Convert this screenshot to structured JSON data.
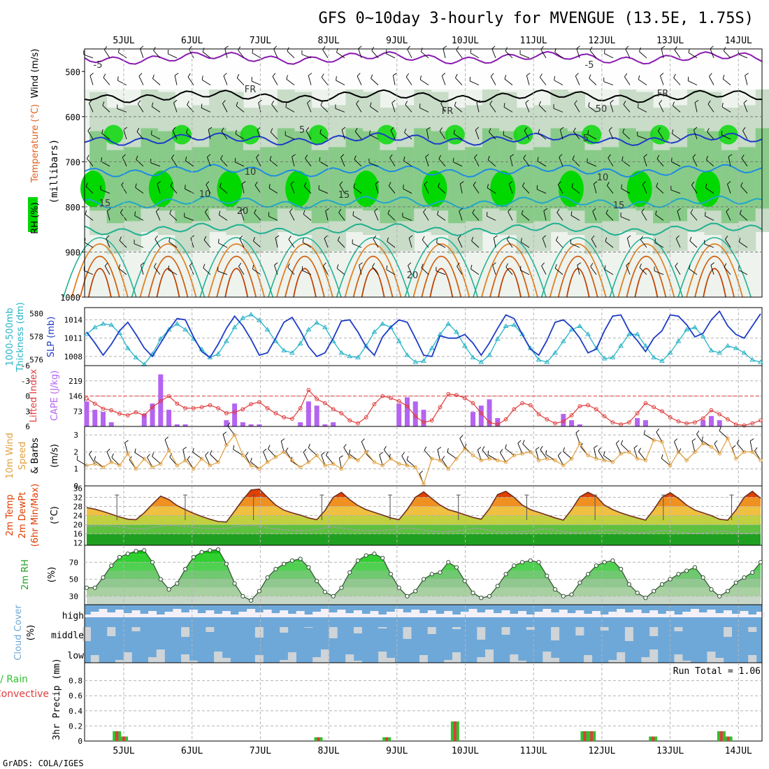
{
  "title": "GFS 0~10day 3-hourly for MVENGUE (13.5E, 1.75S)",
  "footer": "GrADS: COLA/IGES",
  "dates": [
    "5JUL",
    "6JUL",
    "7JUL",
    "8JUL",
    "9JUL",
    "10JUL",
    "11JUL",
    "12JUL",
    "13JUL",
    "14JUL"
  ],
  "colors": {
    "grid": "#b4b4b4",
    "rh_dark": "#00d800",
    "rh_mid": "#7cc87c",
    "rh_light": "#c8dcc8",
    "temp_warm": "#e07000",
    "temp_mid": "#20b090",
    "slp": "#1e3cc8",
    "thickness": "#28b4c8",
    "cape": "#b464f0",
    "lifted": "#e03c3c",
    "wind10": "#e0a040",
    "temp2m": "#e03c00",
    "dewpt": "#a0a0a0",
    "rh2m": "#30d030",
    "cloud": "#6ea8d8",
    "precip_total": "#30c030",
    "precip_conv": "#e03c3c"
  },
  "panels": {
    "upper": {
      "ylabel": "(millibars)",
      "yticks": [
        "500",
        "600",
        "700",
        "800",
        "900",
        "1000"
      ],
      "side_labels": [
        "RH (%)",
        "Temperature (°C)",
        "Wind (m/s)"
      ],
      "contour_labels": [
        "-5",
        "-5",
        "FR",
        "FR",
        "FR",
        "5",
        "5",
        "10",
        "10",
        "15",
        "15",
        "15",
        "20",
        "20",
        "10",
        "50"
      ]
    },
    "slp": {
      "left_labels": [
        "1000-500mb",
        "Thickness (dm)"
      ],
      "right_label": "SLP (mb)",
      "left_ticks": [
        "580",
        "578",
        "576"
      ],
      "right_ticks": [
        "1014",
        "1011",
        "1008"
      ]
    },
    "cape": {
      "left_label": "Lifted Index",
      "right_label": "CAPE (J/kg)",
      "left_ticks": [
        "-6",
        "-3",
        "0",
        "3",
        "6"
      ],
      "right_ticks": [
        "219",
        "146",
        "73"
      ]
    },
    "wind10": {
      "labels": [
        "10m Wind",
        "Speed",
        "& Barbs"
      ],
      "unit": "(m/s)",
      "yticks": [
        "3",
        "2",
        "1",
        "0"
      ]
    },
    "temp2m": {
      "labels": [
        "2m Temp",
        "2m DewPt",
        "(6hr Min/Max)"
      ],
      "unit": "(°C)",
      "yticks": [
        "36",
        "32",
        "28",
        "24",
        "20",
        "16",
        "12"
      ]
    },
    "rh2m": {
      "label": "2m RH",
      "unit": "(%)",
      "yticks": [
        "70",
        "50",
        "30"
      ]
    },
    "cloud": {
      "label": "Cloud Cover",
      "unit": "(%)",
      "levels": [
        "high",
        "middle",
        "low"
      ]
    },
    "precip": {
      "left_labels": [
        "Total / Rain",
        "Convective"
      ],
      "ylabel": "3hr Precip (mm)",
      "yticks": [
        "0.8",
        "0.6",
        "0.4",
        "0.2",
        "0"
      ],
      "run_total": "Run Total = 1.06"
    }
  },
  "chart_data": [
    {
      "type": "line",
      "title": "1000-500mb Thickness (dm) / SLP (mb)",
      "series": [
        {
          "name": "SLP (mb)",
          "values": [
            1012.0,
            1010.2,
            1008.2,
            1010.0,
            1012.2,
            1013.6,
            1011.6,
            1009.4,
            1008.0,
            1010.2,
            1012.4,
            1014.2,
            1014.0,
            1011.2,
            1008.8,
            1007.8,
            1010.0,
            1012.6,
            1014.6,
            1013.0,
            1010.8,
            1008.2,
            1008.6,
            1011.0,
            1013.6,
            1014.4,
            1012.2,
            1009.6,
            1008.0,
            1008.6,
            1011.0,
            1013.8,
            1014.0,
            1012.0,
            1009.6,
            1008.2,
            1011.2,
            1012.8,
            1014.0,
            1013.6,
            1011.0,
            1008.2,
            1008.0,
            1011.4,
            1011.0,
            1011.0,
            1011.6,
            1010.2,
            1008.2,
            1010.2,
            1012.6,
            1014.8,
            1014.2,
            1011.6,
            1009.2,
            1008.2,
            1010.6,
            1013.6,
            1014.0,
            1012.8,
            1011.0,
            1008.6,
            1009.2,
            1012.2,
            1014.6,
            1014.8,
            1012.2,
            1010.6,
            1008.8,
            1011.0,
            1012.2,
            1014.8,
            1014.6,
            1013.2,
            1011.2,
            1011.8,
            1014.0,
            1015.4,
            1013.0,
            1011.6,
            1011.0,
            1013.0,
            1015.0
          ]
        },
        {
          "name": "1000-500mb Thickness (dm)",
          "values": [
            578.2,
            578.8,
            579.1,
            579.0,
            578.3,
            577.0,
            576.2,
            575.6,
            576.5,
            577.8,
            578.6,
            579.1,
            578.6,
            577.8,
            576.9,
            576.2,
            576.5,
            577.6,
            578.8,
            579.6,
            579.9,
            579.4,
            578.6,
            577.6,
            576.8,
            576.6,
            577.4,
            578.6,
            579.2,
            578.8,
            577.6,
            576.6,
            576.3,
            576.2,
            577.2,
            578.4,
            579.1,
            578.8,
            577.6,
            576.4,
            575.8,
            575.9,
            577.0,
            578.2,
            579.1,
            578.4,
            577.2,
            576.2,
            575.8,
            576.4,
            577.8,
            578.9,
            579.0,
            578.2,
            577.0,
            576.0,
            575.8,
            576.6,
            577.6,
            578.6,
            578.9,
            578.2,
            577.0,
            576.1,
            576.2,
            577.2,
            578.2,
            578.2,
            577.2,
            576.2,
            575.9,
            576.6,
            577.6,
            578.6,
            578.8,
            578.0,
            576.8,
            576.6,
            577.2,
            577.0,
            576.6,
            576.0,
            575.8
          ]
        }
      ],
      "ylim_left": [
        575.5,
        580.5
      ],
      "ylim_right": [
        1006.5,
        1016.0
      ]
    },
    {
      "type": "bar",
      "title": "Lifted Index / CAPE (J/kg)",
      "series": [
        {
          "name": "CAPE (J/kg)",
          "values": [
            120,
            80,
            70,
            20,
            0,
            0,
            0,
            60,
            110,
            250,
            80,
            10,
            10,
            0,
            0,
            0,
            0,
            30,
            110,
            20,
            10,
            10,
            0,
            0,
            0,
            0,
            20,
            120,
            100,
            10,
            20,
            0,
            0,
            0,
            0,
            0,
            0,
            0,
            110,
            140,
            120,
            80,
            0,
            0,
            0,
            0,
            0,
            70,
            100,
            130,
            40,
            0,
            0,
            0,
            0,
            0,
            0,
            0,
            60,
            30,
            10,
            0,
            0,
            0,
            0,
            0,
            0,
            40,
            30,
            0,
            0,
            0,
            0,
            0,
            0,
            30,
            50,
            30,
            0,
            0,
            0,
            0,
            0
          ]
        },
        {
          "name": "Lifted Index",
          "values": [
            0.5,
            1.5,
            2.5,
            2.8,
            3.5,
            3.8,
            3.2,
            3.8,
            2.2,
            1.0,
            0.0,
            1.5,
            2.4,
            2.4,
            2.2,
            1.8,
            2.4,
            3.4,
            3.2,
            2.6,
            1.6,
            1.2,
            2.4,
            3.4,
            4.2,
            4.5,
            2.4,
            -1.2,
            0.6,
            1.4,
            2.6,
            3.4,
            4.8,
            5.4,
            4.2,
            1.6,
            0.0,
            0.4,
            1.0,
            2.0,
            4.0,
            5.2,
            4.8,
            2.2,
            -0.4,
            -0.2,
            0.4,
            1.4,
            3.4,
            5.2,
            5.6,
            4.6,
            2.6,
            1.4,
            1.8,
            3.6,
            4.6,
            5.4,
            5.0,
            3.8,
            2.0,
            1.8,
            2.6,
            4.0,
            5.2,
            5.6,
            5.2,
            3.4,
            1.4,
            2.2,
            3.0,
            4.2,
            5.0,
            5.4,
            5.2,
            4.4,
            2.8,
            3.6,
            4.6,
            5.6,
            5.8,
            5.4,
            4.8
          ]
        }
      ],
      "ylim_left": [
        6,
        -6
      ],
      "ylim_right": [
        0,
        292
      ]
    },
    {
      "type": "line",
      "title": "10m Wind Speed & Barbs (m/s)",
      "series": [
        {
          "name": "10m Wind Speed",
          "values": [
            1.2,
            1.3,
            1.1,
            1.4,
            1.2,
            1.9,
            1.0,
            1.6,
            1.1,
            1.3,
            2.1,
            1.2,
            1.5,
            1.0,
            1.6,
            1.2,
            1.4,
            2.4,
            3.0,
            1.8,
            1.2,
            1.0,
            1.4,
            1.7,
            2.0,
            1.5,
            1.1,
            1.4,
            1.8,
            1.2,
            1.3,
            1.0,
            1.7,
            1.5,
            2.0,
            1.4,
            1.2,
            1.6,
            1.3,
            1.2,
            1.1,
            0.1,
            1.6,
            1.5,
            1.0,
            1.6,
            2.2,
            1.8,
            1.5,
            1.6,
            1.5,
            1.4,
            1.8,
            1.9,
            2.0,
            1.5,
            1.6,
            1.5,
            1.2,
            1.6,
            2.5,
            1.8,
            1.6,
            1.5,
            1.4,
            1.9,
            2.0,
            1.6,
            1.5,
            2.7,
            2.6,
            1.2,
            2.0,
            1.5,
            2.0,
            2.5,
            2.3,
            1.9,
            2.8,
            1.6,
            2.0,
            2.0,
            1.5
          ]
        }
      ],
      "ylim": [
        0,
        3.5
      ]
    },
    {
      "type": "area",
      "title": "2m Temp / 2m DewPt (6hr Min/Max) (°C)",
      "series": [
        {
          "name": "2m Temp",
          "values": [
            27.5,
            26.8,
            25.8,
            24.6,
            23.4,
            22.4,
            22.2,
            25.2,
            29.0,
            32.5,
            31.0,
            28.4,
            26.6,
            25.0,
            23.6,
            22.4,
            21.4,
            21.2,
            26.0,
            31.0,
            35.2,
            35.6,
            32.0,
            28.6,
            26.4,
            25.2,
            24.2,
            23.0,
            22.2,
            26.2,
            32.0,
            34.2,
            31.0,
            28.4,
            26.6,
            25.4,
            24.2,
            23.0,
            22.2,
            26.6,
            32.0,
            34.4,
            31.4,
            28.6,
            26.6,
            25.6,
            24.4,
            23.2,
            22.4,
            27.0,
            33.2,
            34.6,
            32.0,
            28.6,
            26.6,
            25.4,
            24.2,
            23.0,
            22.0,
            26.6,
            32.2,
            34.2,
            32.4,
            28.6,
            26.6,
            25.2,
            24.0,
            23.0,
            22.0,
            26.6,
            32.0,
            34.0,
            31.6,
            28.6,
            26.4,
            25.2,
            24.0,
            22.4,
            22.0,
            26.4,
            32.0,
            34.6,
            31.6
          ]
        },
        {
          "name": "2m DewPt",
          "values": [
            19.2,
            19.4,
            19.6,
            19.4,
            19.0,
            18.6,
            18.2,
            18.2,
            18.8,
            19.4,
            19.8,
            19.6,
            19.2,
            18.8,
            18.6,
            18.4,
            18.2,
            18.4,
            19.0,
            19.6,
            19.8,
            19.2,
            18.6,
            18.2,
            17.8,
            17.6,
            17.4,
            17.6,
            18.0,
            18.6,
            19.0,
            18.6,
            18.0,
            17.6,
            17.4,
            17.4,
            17.6,
            17.8,
            18.2,
            18.6,
            18.2,
            17.6,
            17.2,
            17.0,
            17.0,
            17.2,
            17.8,
            18.4,
            18.2,
            17.6,
            17.0,
            16.8,
            16.8,
            17.0,
            17.4,
            18.0,
            18.2,
            17.6,
            17.0,
            16.6,
            16.6,
            16.8,
            17.2,
            17.6,
            17.6,
            17.0,
            16.6,
            16.4,
            16.6,
            17.0,
            17.4,
            17.4,
            16.8,
            16.4,
            16.2,
            16.4,
            16.8,
            17.2,
            17.0,
            16.4,
            16.2,
            16.4,
            16.8
          ]
        }
      ],
      "ylim": [
        11,
        37
      ]
    },
    {
      "type": "area",
      "title": "2m RH (%)",
      "series": [
        {
          "name": "2m RH",
          "values": [
            40,
            40,
            52,
            66,
            76,
            80,
            83,
            84,
            70,
            50,
            38,
            45,
            62,
            76,
            82,
            84,
            85,
            68,
            45,
            30,
            25,
            36,
            52,
            62,
            68,
            72,
            74,
            64,
            48,
            35,
            30,
            40,
            58,
            72,
            78,
            80,
            75,
            56,
            40,
            30,
            36,
            50,
            56,
            58,
            70,
            64,
            48,
            34,
            28,
            30,
            42,
            56,
            66,
            70,
            72,
            70,
            54,
            38,
            30,
            32,
            46,
            56,
            66,
            70,
            72,
            62,
            44,
            34,
            28,
            36,
            44,
            50,
            56,
            60,
            64,
            52,
            38,
            30,
            36,
            46,
            52,
            58,
            70
          ]
        }
      ],
      "ylim": [
        20,
        90
      ]
    },
    {
      "type": "bar",
      "title": "3hr Precip (mm)",
      "series": [
        {
          "name": "Total / Rain",
          "values": [
            0,
            0,
            0,
            0,
            0,
            0,
            0,
            0,
            0,
            0,
            0,
            0,
            0,
            0,
            0,
            0,
            0,
            0,
            0,
            0,
            0,
            0,
            0,
            0,
            0,
            0,
            0,
            0,
            0,
            0,
            0,
            0,
            0,
            0,
            0,
            0,
            0,
            0,
            0,
            0,
            0,
            0,
            0,
            0,
            0,
            0,
            0,
            0,
            0,
            0,
            0,
            0,
            0,
            0,
            0,
            0,
            0,
            0,
            0,
            0,
            0,
            0,
            0,
            0,
            0,
            0,
            0,
            0,
            0,
            0,
            0,
            0,
            0,
            0,
            0,
            0,
            0,
            0,
            0,
            0,
            0,
            0,
            0
          ],
          "events": [
            {
              "date": "4.9",
              "value": 0.13
            },
            {
              "date": "5.0",
              "value": 0.06
            },
            {
              "date": "7.85",
              "value": 0.05
            },
            {
              "date": "8.85",
              "value": 0.05
            },
            {
              "date": "9.85",
              "value": 0.26
            },
            {
              "date": "11.75",
              "value": 0.13
            },
            {
              "date": "11.85",
              "value": 0.13
            },
            {
              "date": "12.75",
              "value": 0.06
            },
            {
              "date": "13.75",
              "value": 0.13
            },
            {
              "date": "13.85",
              "value": 0.06
            }
          ]
        },
        {
          "name": "Convective",
          "values": [],
          "events": [
            {
              "date": "4.9",
              "value": 0.13
            },
            {
              "date": "5.0",
              "value": 0.06
            },
            {
              "date": "7.85",
              "value": 0.05
            },
            {
              "date": "8.85",
              "value": 0.05
            },
            {
              "date": "9.85",
              "value": 0.26
            },
            {
              "date": "11.75",
              "value": 0.13
            },
            {
              "date": "11.85",
              "value": 0.13
            },
            {
              "date": "12.75",
              "value": 0.06
            },
            {
              "date": "13.75",
              "value": 0.13
            },
            {
              "date": "13.85",
              "value": 0.06
            }
          ]
        }
      ],
      "ylim": [
        0,
        1.0
      ]
    }
  ]
}
